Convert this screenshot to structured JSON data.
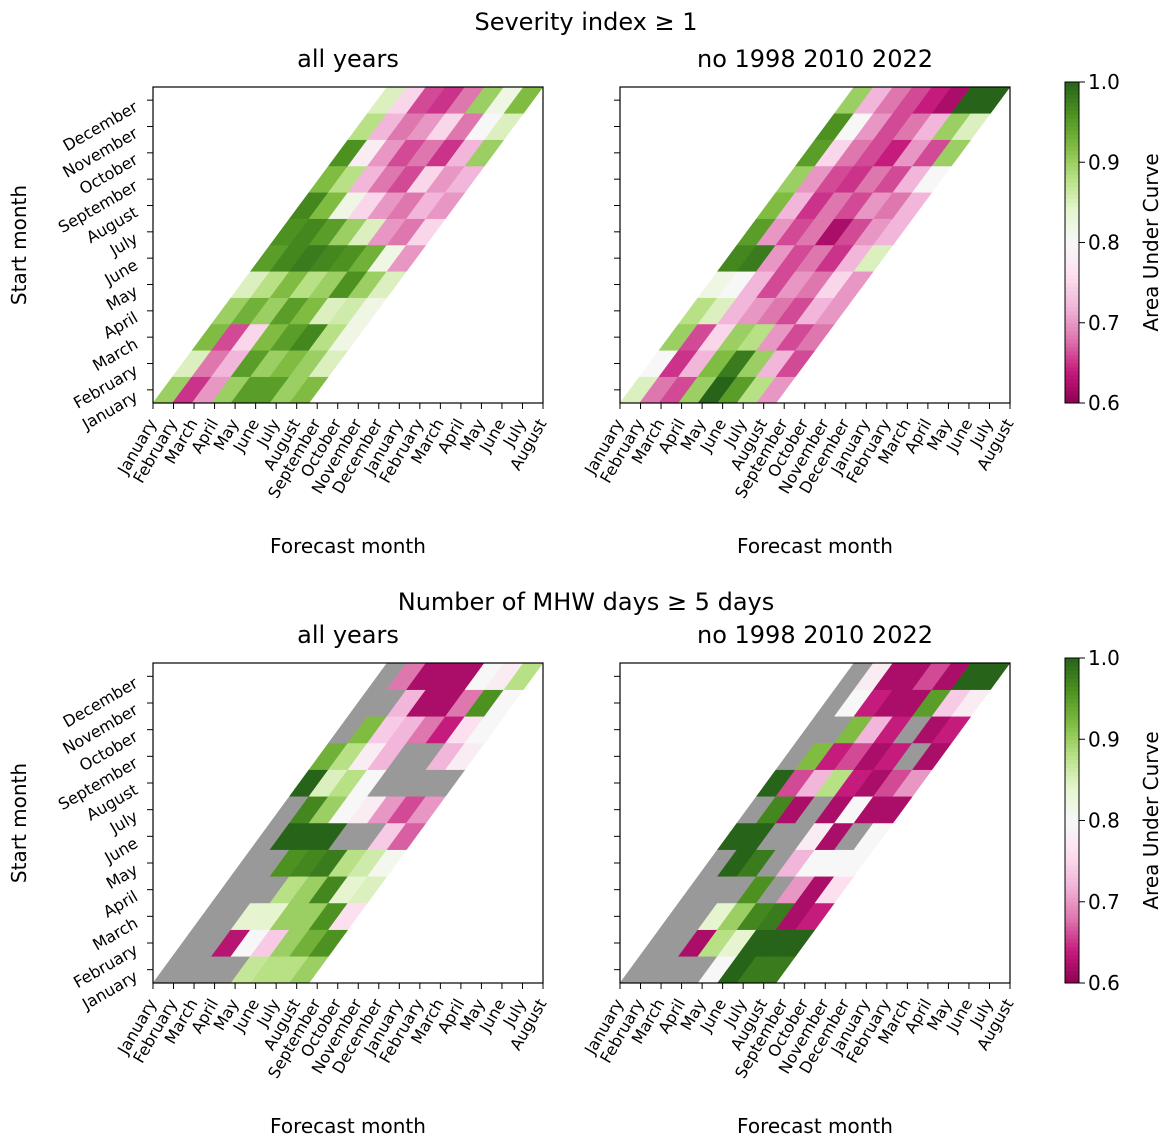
{
  "figure_titles": [
    "Severity index ≥ 1",
    "Number of MHW days ≥ 5 days"
  ],
  "chart_data": [
    {
      "type": "heatmap",
      "title": "all years",
      "xlabel": "Forecast month",
      "ylabel": "Start month",
      "x_categories": [
        "January",
        "February",
        "March",
        "April",
        "May",
        "June",
        "July",
        "August",
        "September",
        "October",
        "November",
        "December",
        "January",
        "February",
        "March",
        "April",
        "May",
        "June",
        "July",
        "August"
      ],
      "y_categories": [
        "January",
        "February",
        "March",
        "April",
        "May",
        "June",
        "July",
        "August",
        "September",
        "October",
        "November",
        "December"
      ],
      "z": [
        [
          0.9,
          0.65,
          0.7,
          0.9,
          0.95,
          0.95,
          0.9,
          0.92
        ],
        [
          0.85,
          0.68,
          0.72,
          0.95,
          0.9,
          0.92,
          0.9,
          0.85
        ],
        [
          0.92,
          0.66,
          0.75,
          0.92,
          0.95,
          0.97,
          0.88,
          0.82
        ],
        [
          0.9,
          0.93,
          0.9,
          0.95,
          0.92,
          0.85,
          0.86,
          0.82
        ],
        [
          0.85,
          0.88,
          0.92,
          0.88,
          0.9,
          0.96,
          0.9,
          0.85
        ],
        [
          0.95,
          0.97,
          0.98,
          0.97,
          0.96,
          0.93,
          0.82,
          0.7
        ],
        [
          0.96,
          0.97,
          0.95,
          0.9,
          0.85,
          0.7,
          0.68,
          0.75
        ],
        [
          0.97,
          0.92,
          0.82,
          0.75,
          0.7,
          0.68,
          0.72,
          0.7
        ],
        [
          0.92,
          0.88,
          0.72,
          0.68,
          0.66,
          0.75,
          0.7,
          0.72
        ],
        [
          0.96,
          0.78,
          0.7,
          0.66,
          0.68,
          0.65,
          0.72,
          0.9
        ],
        [
          0.88,
          0.72,
          0.68,
          0.7,
          0.75,
          0.68,
          0.8,
          0.85
        ],
        [
          0.85,
          0.75,
          0.66,
          0.65,
          0.68,
          0.9,
          0.82,
          0.92
        ]
      ]
    },
    {
      "type": "heatmap",
      "title": "no 1998 2010 2022",
      "xlabel": "Forecast month",
      "x_categories": [
        "January",
        "February",
        "March",
        "April",
        "May",
        "June",
        "July",
        "August",
        "September",
        "October",
        "November",
        "December",
        "January",
        "February",
        "March",
        "April",
        "May",
        "June",
        "July",
        "August"
      ],
      "z": [
        [
          0.85,
          0.68,
          0.66,
          0.9,
          1.0,
          0.95,
          0.88,
          0.7
        ],
        [
          0.8,
          0.65,
          0.72,
          0.92,
          0.98,
          0.9,
          0.72,
          0.66
        ],
        [
          0.9,
          0.66,
          0.75,
          0.9,
          0.88,
          0.7,
          0.66,
          0.68
        ],
        [
          0.88,
          0.85,
          0.72,
          0.7,
          0.68,
          0.66,
          0.72,
          0.7
        ],
        [
          0.82,
          0.8,
          0.72,
          0.66,
          0.7,
          0.68,
          0.75,
          0.7
        ],
        [
          0.97,
          0.98,
          0.7,
          0.66,
          0.68,
          0.65,
          0.72,
          0.85
        ],
        [
          0.95,
          0.7,
          0.66,
          0.68,
          0.62,
          0.66,
          0.7,
          0.72
        ],
        [
          0.92,
          0.72,
          0.65,
          0.68,
          0.66,
          0.7,
          0.68,
          0.72
        ],
        [
          0.9,
          0.7,
          0.66,
          0.65,
          0.68,
          0.66,
          0.72,
          0.8
        ],
        [
          0.95,
          0.75,
          0.68,
          0.66,
          0.64,
          0.7,
          0.66,
          0.9
        ],
        [
          0.96,
          0.8,
          0.7,
          0.66,
          0.68,
          0.72,
          0.9,
          0.85
        ],
        [
          0.9,
          0.72,
          0.68,
          0.66,
          0.64,
          0.62,
          1.0,
          1.0
        ]
      ],
      "colorbar": {
        "label": "Area Under Curve",
        "lim": [
          0.6,
          1.0
        ],
        "ticks": [
          0.6,
          0.7,
          0.8,
          0.9,
          {
            "value": 1.0,
            "label": "1.0"
          }
        ]
      }
    },
    {
      "type": "heatmap",
      "title": "all years",
      "xlabel": "Forecast month",
      "ylabel": "Start month",
      "x_categories": [
        "January",
        "February",
        "March",
        "April",
        "May",
        "June",
        "July",
        "August",
        "September",
        "October",
        "November",
        "December",
        "January",
        "February",
        "March",
        "April",
        "May",
        "June",
        "July",
        "August"
      ],
      "y_categories": [
        "January",
        "February",
        "March",
        "April",
        "May",
        "June",
        "July",
        "August",
        "September",
        "October",
        "November",
        "December"
      ],
      "z": [
        [
          null,
          null,
          null,
          null,
          0.87,
          0.88,
          0.88,
          0.9
        ],
        [
          null,
          null,
          0.63,
          0.8,
          0.74,
          0.9,
          0.93,
          0.96
        ],
        [
          null,
          null,
          0.84,
          0.84,
          0.9,
          0.9,
          0.96,
          0.76
        ],
        [
          null,
          null,
          null,
          0.88,
          0.9,
          0.97,
          0.84,
          0.85
        ],
        [
          null,
          null,
          0.96,
          0.97,
          0.98,
          0.88,
          0.86,
          0.81
        ],
        [
          null,
          1.0,
          1.0,
          1.0,
          null,
          null,
          0.74,
          0.67
        ],
        [
          null,
          0.97,
          0.9,
          0.8,
          0.78,
          0.7,
          0.66,
          0.7
        ],
        [
          1.0,
          0.85,
          0.88,
          0.8,
          null,
          null,
          null,
          null
        ],
        [
          0.93,
          0.88,
          0.78,
          0.72,
          null,
          null,
          0.72,
          0.78
        ],
        [
          null,
          0.92,
          0.74,
          0.72,
          0.68,
          0.64,
          0.76,
          0.8
        ],
        [
          null,
          null,
          0.72,
          0.62,
          0.62,
          0.68,
          0.96,
          0.8
        ],
        [
          null,
          0.68,
          0.62,
          0.62,
          0.62,
          0.8,
          0.78,
          0.88
        ]
      ]
    },
    {
      "type": "heatmap",
      "title": "no 1998 2010 2022",
      "xlabel": "Forecast month",
      "x_categories": [
        "January",
        "February",
        "March",
        "April",
        "May",
        "June",
        "July",
        "August",
        "September",
        "October",
        "November",
        "December",
        "January",
        "February",
        "March",
        "April",
        "May",
        "June",
        "July",
        "August"
      ],
      "z": [
        [
          null,
          null,
          null,
          null,
          0.8,
          1.0,
          0.98,
          0.98
        ],
        [
          null,
          null,
          0.62,
          0.88,
          0.84,
          1.0,
          1.0,
          1.0
        ],
        [
          null,
          null,
          0.84,
          0.9,
          0.97,
          0.98,
          0.62,
          0.64
        ],
        [
          null,
          null,
          null,
          0.96,
          null,
          0.7,
          0.62,
          0.76
        ],
        [
          null,
          1.0,
          0.98,
          null,
          0.72,
          0.8,
          0.8,
          0.8
        ],
        [
          1.0,
          1.0,
          null,
          null,
          0.78,
          0.62,
          null,
          0.8
        ],
        [
          null,
          0.97,
          0.62,
          null,
          0.62,
          0.8,
          0.62,
          0.62
        ],
        [
          1.0,
          0.66,
          0.72,
          0.88,
          0.64,
          0.62,
          0.66,
          0.7
        ],
        [
          null,
          0.92,
          0.64,
          0.66,
          0.62,
          0.64,
          null,
          0.62
        ],
        [
          null,
          null,
          0.92,
          0.72,
          0.64,
          null,
          0.62,
          0.64
        ],
        [
          null,
          0.8,
          0.64,
          0.62,
          0.62,
          0.95,
          0.74,
          0.78
        ],
        [
          null,
          0.78,
          0.62,
          0.62,
          0.66,
          0.62,
          1.0,
          1.0
        ]
      ],
      "colorbar": {
        "label": "Area Under Curve",
        "lim": [
          0.6,
          1.0
        ],
        "ticks": [
          0.6,
          0.7,
          0.8,
          0.9,
          {
            "value": 1.0,
            "label": "1.0"
          }
        ]
      }
    }
  ],
  "cmap": [
    "#8e0152",
    "#c51b7d",
    "#de77ae",
    "#f1b6da",
    "#fde0ef",
    "#f7f7f7",
    "#e6f5d0",
    "#b8e186",
    "#7fbc41",
    "#4d9221",
    "#276419"
  ],
  "nan_color": "#999999"
}
